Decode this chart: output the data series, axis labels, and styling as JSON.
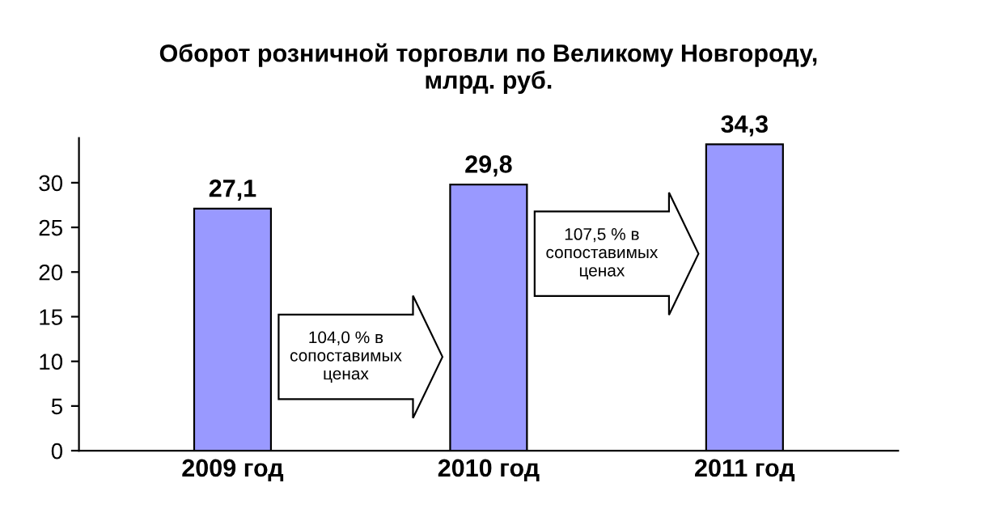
{
  "chart_data": {
    "type": "bar",
    "title": "Оборот розничной торговли по Великому Новгороду,\nмлрд. руб.",
    "categories": [
      "2009 год",
      "2010 год",
      "2011 год"
    ],
    "values": [
      27.1,
      29.8,
      34.3
    ],
    "value_labels": [
      "27,1",
      "29,8",
      "34,3"
    ],
    "color": "#9999ff",
    "ylim": [
      0,
      35
    ],
    "yticks": [
      0,
      5,
      10,
      15,
      20,
      25,
      30
    ],
    "grid": false,
    "annotations": [
      "104,0 % в\nсопоставимых\nценах",
      "107,5 % в\nсопоставимых\nценах"
    ]
  }
}
